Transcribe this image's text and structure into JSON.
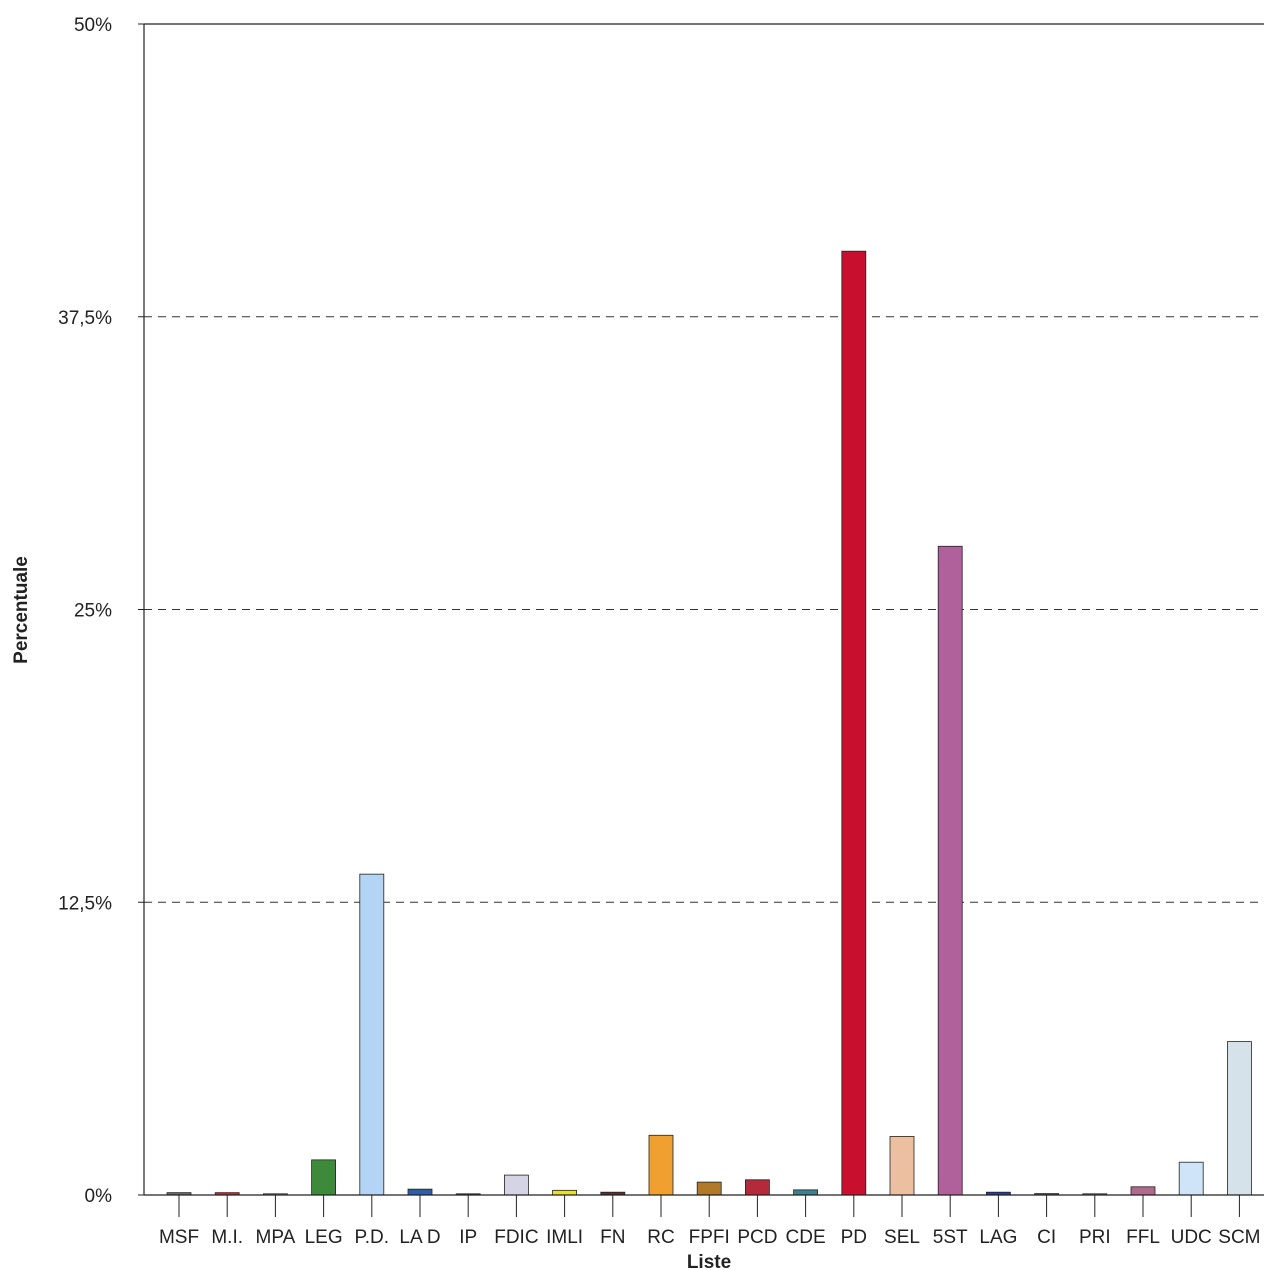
{
  "chart_data": {
    "type": "bar",
    "title": "",
    "xlabel": "Liste",
    "ylabel": "Percentuale",
    "ylim": [
      0,
      50
    ],
    "yticks": [
      {
        "value": 0,
        "label": "0%"
      },
      {
        "value": 12.5,
        "label": "12,5%"
      },
      {
        "value": 25,
        "label": "25%"
      },
      {
        "value": 37.5,
        "label": "37,5%"
      },
      {
        "value": 50,
        "label": "50%"
      }
    ],
    "grid": "dashed horizontal at 12.5, 25, 37.5",
    "categories": [
      "MSF",
      "M.I.",
      "MPA",
      "LEG",
      "P.D.",
      "LA D",
      "IP",
      "FDIC",
      "IMLI",
      "FN",
      "RC",
      "FPFI",
      "PCD",
      "CDE",
      "PD",
      "SEL",
      "5ST",
      "LAG",
      "CI",
      "PRI",
      "FFL",
      "UDC",
      "SCM"
    ],
    "values": [
      0.1,
      0.1,
      0.0,
      1.5,
      13.7,
      0.25,
      0.05,
      0.85,
      0.2,
      0.12,
      2.55,
      0.55,
      0.65,
      0.22,
      40.3,
      2.5,
      27.7,
      0.12,
      0.06,
      0.05,
      0.35,
      1.4,
      6.55
    ],
    "colors": [
      "#6b6b6b",
      "#c0302f",
      "#8a8a8a",
      "#3d8a3b",
      "#b3d4f5",
      "#2d5fa8",
      "#444444",
      "#d4d4e4",
      "#e8de3a",
      "#5a3030",
      "#f0a030",
      "#b07a2a",
      "#b52a3a",
      "#3a8090",
      "#c8102e",
      "#ebbfa0",
      "#b0609a",
      "#2a3f8f",
      "#555555",
      "#777777",
      "#b06a8a",
      "#cfe4f7",
      "#d5e2ea"
    ]
  }
}
